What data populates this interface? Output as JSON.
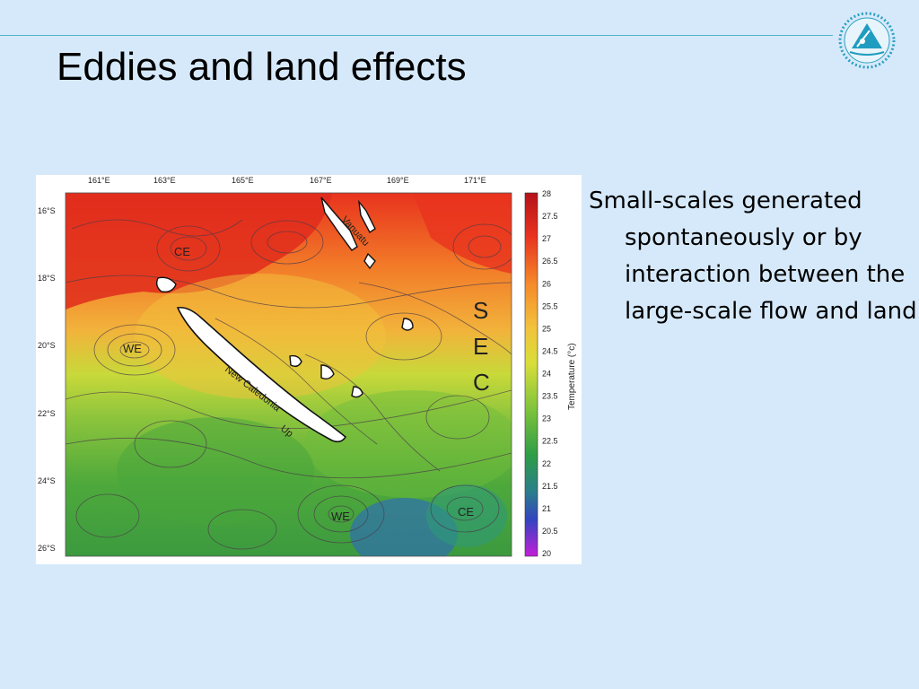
{
  "slide": {
    "title": "Eddies and land effects",
    "bullet": "Small-scales generated spontaneously or by interaction between the large-scale flow and land"
  },
  "figure": {
    "lon_labels": [
      "161°E",
      "163°E",
      "165°E",
      "167°E",
      "169°E",
      "171°E"
    ],
    "lat_labels": [
      "16°S",
      "18°S",
      "20°S",
      "22°S",
      "24°S",
      "26°S"
    ],
    "colorbar_ticks": [
      "28",
      "27.5",
      "27",
      "26.5",
      "26",
      "25.5",
      "25",
      "24.5",
      "24",
      "23.5",
      "23",
      "22.5",
      "22",
      "21.5",
      "21",
      "20.5",
      "20"
    ],
    "colorbar_label": "Temperature (°c)",
    "annotations": {
      "ce_north": "CE",
      "we_west": "WE",
      "we_south": "WE",
      "ce_south": "CE",
      "new_caledonia": "New Caledonia",
      "vanuatu": "Vanuatu",
      "up": "Up",
      "sec_s": "S",
      "sec_e": "E",
      "sec_c": "C"
    }
  },
  "colors": {
    "background": "#d6e9fa",
    "accent_line": "#4fb3c8"
  }
}
